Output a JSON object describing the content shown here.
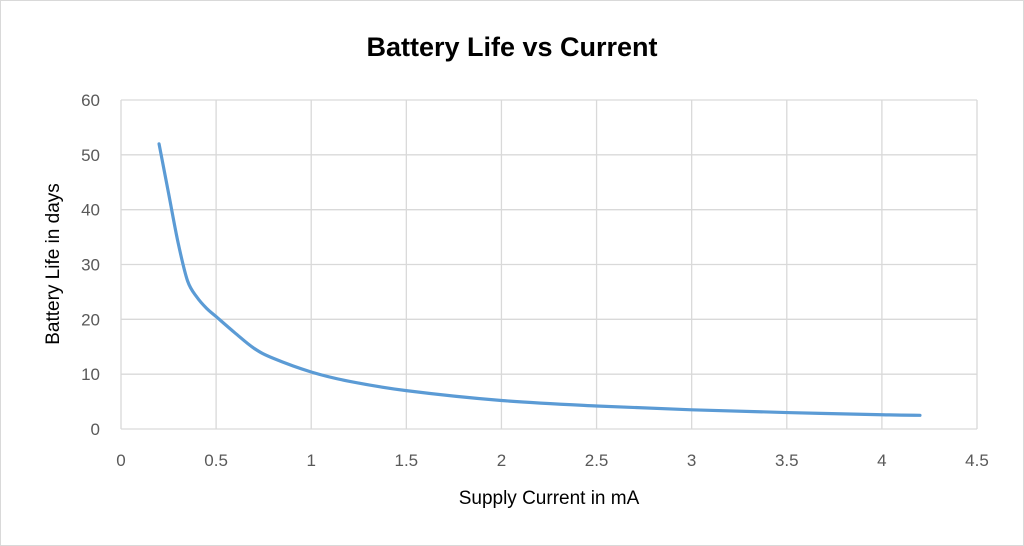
{
  "chart_data": {
    "type": "line",
    "title": "Battery Life vs Current",
    "xlabel": "Supply Current in mA",
    "ylabel": "Battery Life in days",
    "xlim": [
      0,
      4.5
    ],
    "ylim": [
      0,
      60
    ],
    "x_ticks": [
      0,
      0.5,
      1,
      1.5,
      2,
      2.5,
      3,
      3.5,
      4,
      4.5
    ],
    "y_ticks": [
      0,
      10,
      20,
      30,
      40,
      50,
      60
    ],
    "grid": true,
    "legend": "none",
    "series": [
      {
        "color": "#5b9bd5",
        "x": [
          0.2,
          0.25,
          0.3,
          0.35,
          0.4,
          0.45,
          0.5,
          0.6,
          0.7,
          0.8,
          1.0,
          1.2,
          1.5,
          2.0,
          2.5,
          3.0,
          3.5,
          4.0,
          4.2
        ],
        "y": [
          52,
          43,
          34,
          27,
          24,
          22,
          20.5,
          17.5,
          14.7,
          12.9,
          10.4,
          8.7,
          7.0,
          5.2,
          4.2,
          3.5,
          3.0,
          2.6,
          2.5
        ]
      }
    ]
  }
}
